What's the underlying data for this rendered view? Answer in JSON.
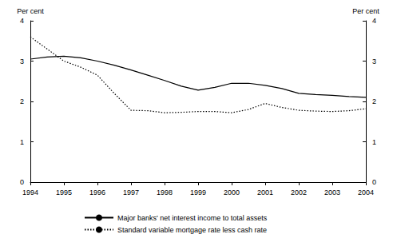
{
  "chart_data": {
    "type": "line",
    "y_label": "Per cent",
    "y2_label": "Per cent",
    "x": [
      1994,
      1994.5,
      1995,
      1995.5,
      1996,
      1996.5,
      1997,
      1997.5,
      1998,
      1998.5,
      1999,
      1999.5,
      2000,
      2000.5,
      2001,
      2001.5,
      2002,
      2002.5,
      2003,
      2003.5,
      2004
    ],
    "series": [
      {
        "name": "Major banks' net interest income to total assets",
        "color": "#000000",
        "line_style": "solid",
        "values": [
          3.05,
          3.1,
          3.12,
          3.08,
          3.0,
          2.9,
          2.78,
          2.65,
          2.52,
          2.38,
          2.28,
          2.35,
          2.45,
          2.45,
          2.4,
          2.32,
          2.2,
          2.17,
          2.15,
          2.12,
          2.1
        ]
      },
      {
        "name": "Standard variable mortgage rate less cash rate",
        "color": "#000000",
        "line_style": "dotted",
        "values": [
          3.6,
          3.3,
          3.0,
          2.85,
          2.65,
          2.2,
          1.78,
          1.77,
          1.72,
          1.73,
          1.75,
          1.75,
          1.72,
          1.8,
          1.95,
          1.85,
          1.78,
          1.76,
          1.75,
          1.77,
          1.82
        ]
      }
    ],
    "xlim": [
      1994,
      2004
    ],
    "xticks": [
      1994,
      1995,
      1996,
      1997,
      1998,
      1999,
      2000,
      2001,
      2002,
      2003,
      2004
    ],
    "ylim": [
      0,
      4
    ],
    "yticks": [
      0,
      1,
      2,
      3,
      4
    ],
    "y2lim": [
      0,
      4
    ],
    "y2ticks": [
      0,
      1,
      2,
      3,
      4
    ],
    "grid": false,
    "legend": "bottom"
  }
}
